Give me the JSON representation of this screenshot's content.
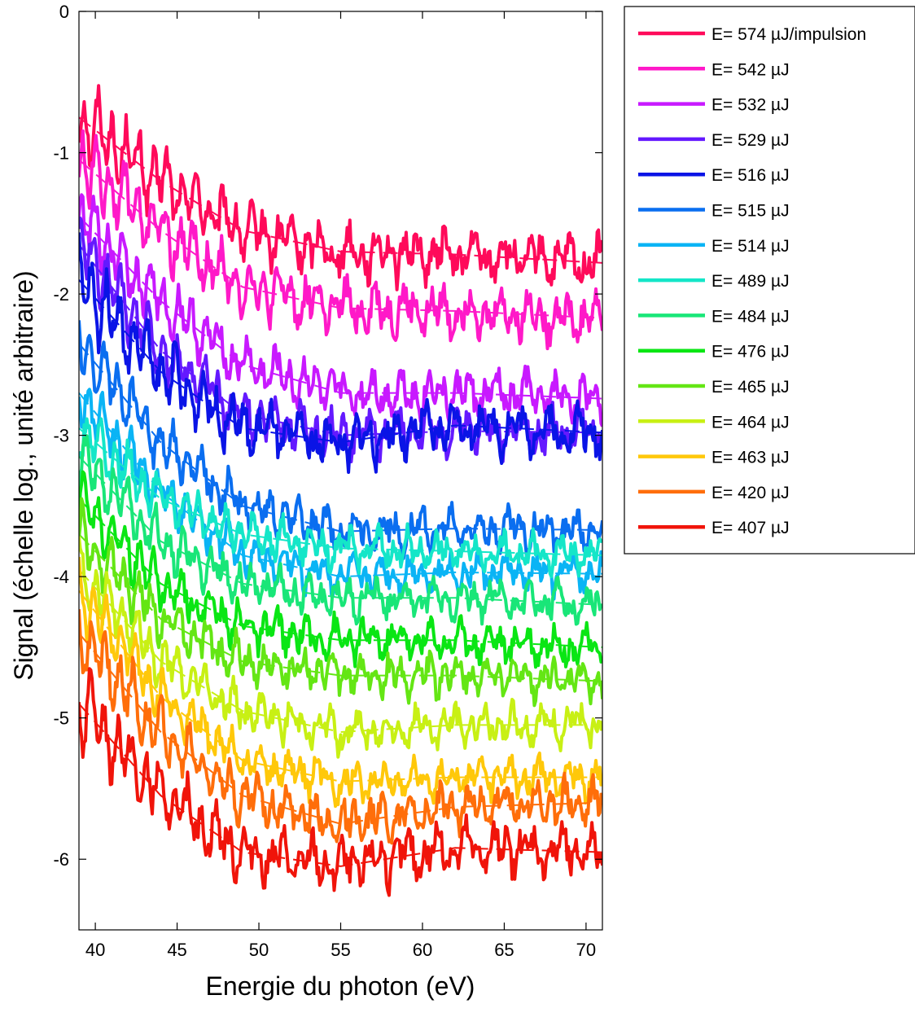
{
  "chart_data": {
    "type": "line",
    "xlabel": "Energie du photon (eV)",
    "ylabel": "Signal (échelle log., unité arbitraire)",
    "xlim": [
      39,
      71
    ],
    "ylim": [
      -6.5,
      0
    ],
    "xticks": [
      40,
      45,
      50,
      55,
      60,
      65,
      70
    ],
    "yticks": [
      0,
      -1,
      -2,
      -3,
      -4,
      -5,
      -6
    ],
    "grid": false,
    "legend_position": "outside-right",
    "line_styles": {
      "measured": "solid",
      "fit": "dashed"
    },
    "series": [
      {
        "name": "E= 574 µJ/impulsion",
        "color": "#ff0a5a",
        "fit": [
          [
            39,
            -0.75
          ],
          [
            44,
            -1.2
          ],
          [
            49,
            -1.55
          ],
          [
            55,
            -1.7
          ],
          [
            62,
            -1.72
          ],
          [
            71,
            -1.78
          ]
        ],
        "osc": 0.22
      },
      {
        "name": "E= 542 µJ",
        "color": "#ff19c8",
        "fit": [
          [
            39,
            -1.05
          ],
          [
            44,
            -1.55
          ],
          [
            49,
            -1.95
          ],
          [
            55,
            -2.1
          ],
          [
            62,
            -2.12
          ],
          [
            71,
            -2.17
          ]
        ],
        "osc": 0.22
      },
      {
        "name": "E= 532 µJ",
        "color": "#c819ff",
        "fit": [
          [
            39,
            -1.45
          ],
          [
            44,
            -2.05
          ],
          [
            49,
            -2.5
          ],
          [
            55,
            -2.7
          ],
          [
            62,
            -2.7
          ],
          [
            71,
            -2.74
          ]
        ],
        "osc": 0.2
      },
      {
        "name": "E= 529 µJ",
        "color": "#6419ff",
        "fit": [
          [
            39,
            -1.65
          ],
          [
            44,
            -2.4
          ],
          [
            49,
            -2.85
          ],
          [
            55,
            -3.0
          ],
          [
            62,
            -2.97
          ],
          [
            71,
            -2.98
          ]
        ],
        "osc": 0.2
      },
      {
        "name": "E= 516 µJ",
        "color": "#0a14e6",
        "fit": [
          [
            39,
            -1.9
          ],
          [
            44,
            -2.55
          ],
          [
            49,
            -2.95
          ],
          [
            55,
            -3.05
          ],
          [
            62,
            -2.93
          ],
          [
            71,
            -2.98
          ]
        ],
        "osc": 0.22
      },
      {
        "name": "E= 515 µJ",
        "color": "#0a6ef0",
        "fit": [
          [
            39,
            -2.35
          ],
          [
            44,
            -3.05
          ],
          [
            49,
            -3.5
          ],
          [
            55,
            -3.68
          ],
          [
            62,
            -3.66
          ],
          [
            71,
            -3.67
          ]
        ],
        "osc": 0.18
      },
      {
        "name": "E= 514 µJ",
        "color": "#0ab4f5",
        "fit": [
          [
            39,
            -2.7
          ],
          [
            44,
            -3.4
          ],
          [
            49,
            -3.85
          ],
          [
            55,
            -4.0
          ],
          [
            62,
            -3.97
          ],
          [
            71,
            -3.98
          ]
        ],
        "osc": 0.16
      },
      {
        "name": "E= 489 µJ",
        "color": "#14e6c8",
        "fit": [
          [
            39,
            -2.95
          ],
          [
            44,
            -3.45
          ],
          [
            49,
            -3.7
          ],
          [
            55,
            -3.8
          ],
          [
            62,
            -3.82
          ],
          [
            71,
            -3.85
          ]
        ],
        "osc": 0.16
      },
      {
        "name": "E= 484 µJ",
        "color": "#19e678",
        "fit": [
          [
            39,
            -3.15
          ],
          [
            44,
            -3.75
          ],
          [
            49,
            -4.05
          ],
          [
            55,
            -4.15
          ],
          [
            62,
            -4.15
          ],
          [
            71,
            -4.2
          ]
        ],
        "osc": 0.17
      },
      {
        "name": "E= 476 µJ",
        "color": "#0ae614",
        "fit": [
          [
            39,
            -3.45
          ],
          [
            44,
            -4.05
          ],
          [
            49,
            -4.35
          ],
          [
            55,
            -4.45
          ],
          [
            62,
            -4.45
          ],
          [
            71,
            -4.5
          ]
        ],
        "osc": 0.17
      },
      {
        "name": "E= 465 µJ",
        "color": "#64e614",
        "fit": [
          [
            39,
            -3.7
          ],
          [
            44,
            -4.3
          ],
          [
            49,
            -4.6
          ],
          [
            55,
            -4.7
          ],
          [
            62,
            -4.7
          ],
          [
            71,
            -4.74
          ]
        ],
        "osc": 0.17
      },
      {
        "name": "E= 464 µJ",
        "color": "#c8f014",
        "fit": [
          [
            39,
            -3.95
          ],
          [
            44,
            -4.6
          ],
          [
            49,
            -4.95
          ],
          [
            55,
            -5.1
          ],
          [
            62,
            -5.05
          ],
          [
            71,
            -5.05
          ]
        ],
        "osc": 0.17
      },
      {
        "name": "E= 463 µJ",
        "color": "#ffc80a",
        "fit": [
          [
            39,
            -4.1
          ],
          [
            44,
            -4.85
          ],
          [
            49,
            -5.3
          ],
          [
            55,
            -5.45
          ],
          [
            62,
            -5.42
          ],
          [
            71,
            -5.42
          ]
        ],
        "osc": 0.17
      },
      {
        "name": "E= 420 µJ",
        "color": "#ff6e0a",
        "fit": [
          [
            39,
            -4.4
          ],
          [
            44,
            -5.1
          ],
          [
            49,
            -5.55
          ],
          [
            55,
            -5.75
          ],
          [
            62,
            -5.63
          ],
          [
            71,
            -5.6
          ]
        ],
        "osc": 0.2
      },
      {
        "name": "E= 407 µJ",
        "color": "#f0140a",
        "fit": [
          [
            39,
            -4.9
          ],
          [
            44,
            -5.55
          ],
          [
            49,
            -5.95
          ],
          [
            55,
            -6.05
          ],
          [
            62,
            -5.92
          ],
          [
            71,
            -5.95
          ]
        ],
        "osc": 0.22
      }
    ]
  }
}
